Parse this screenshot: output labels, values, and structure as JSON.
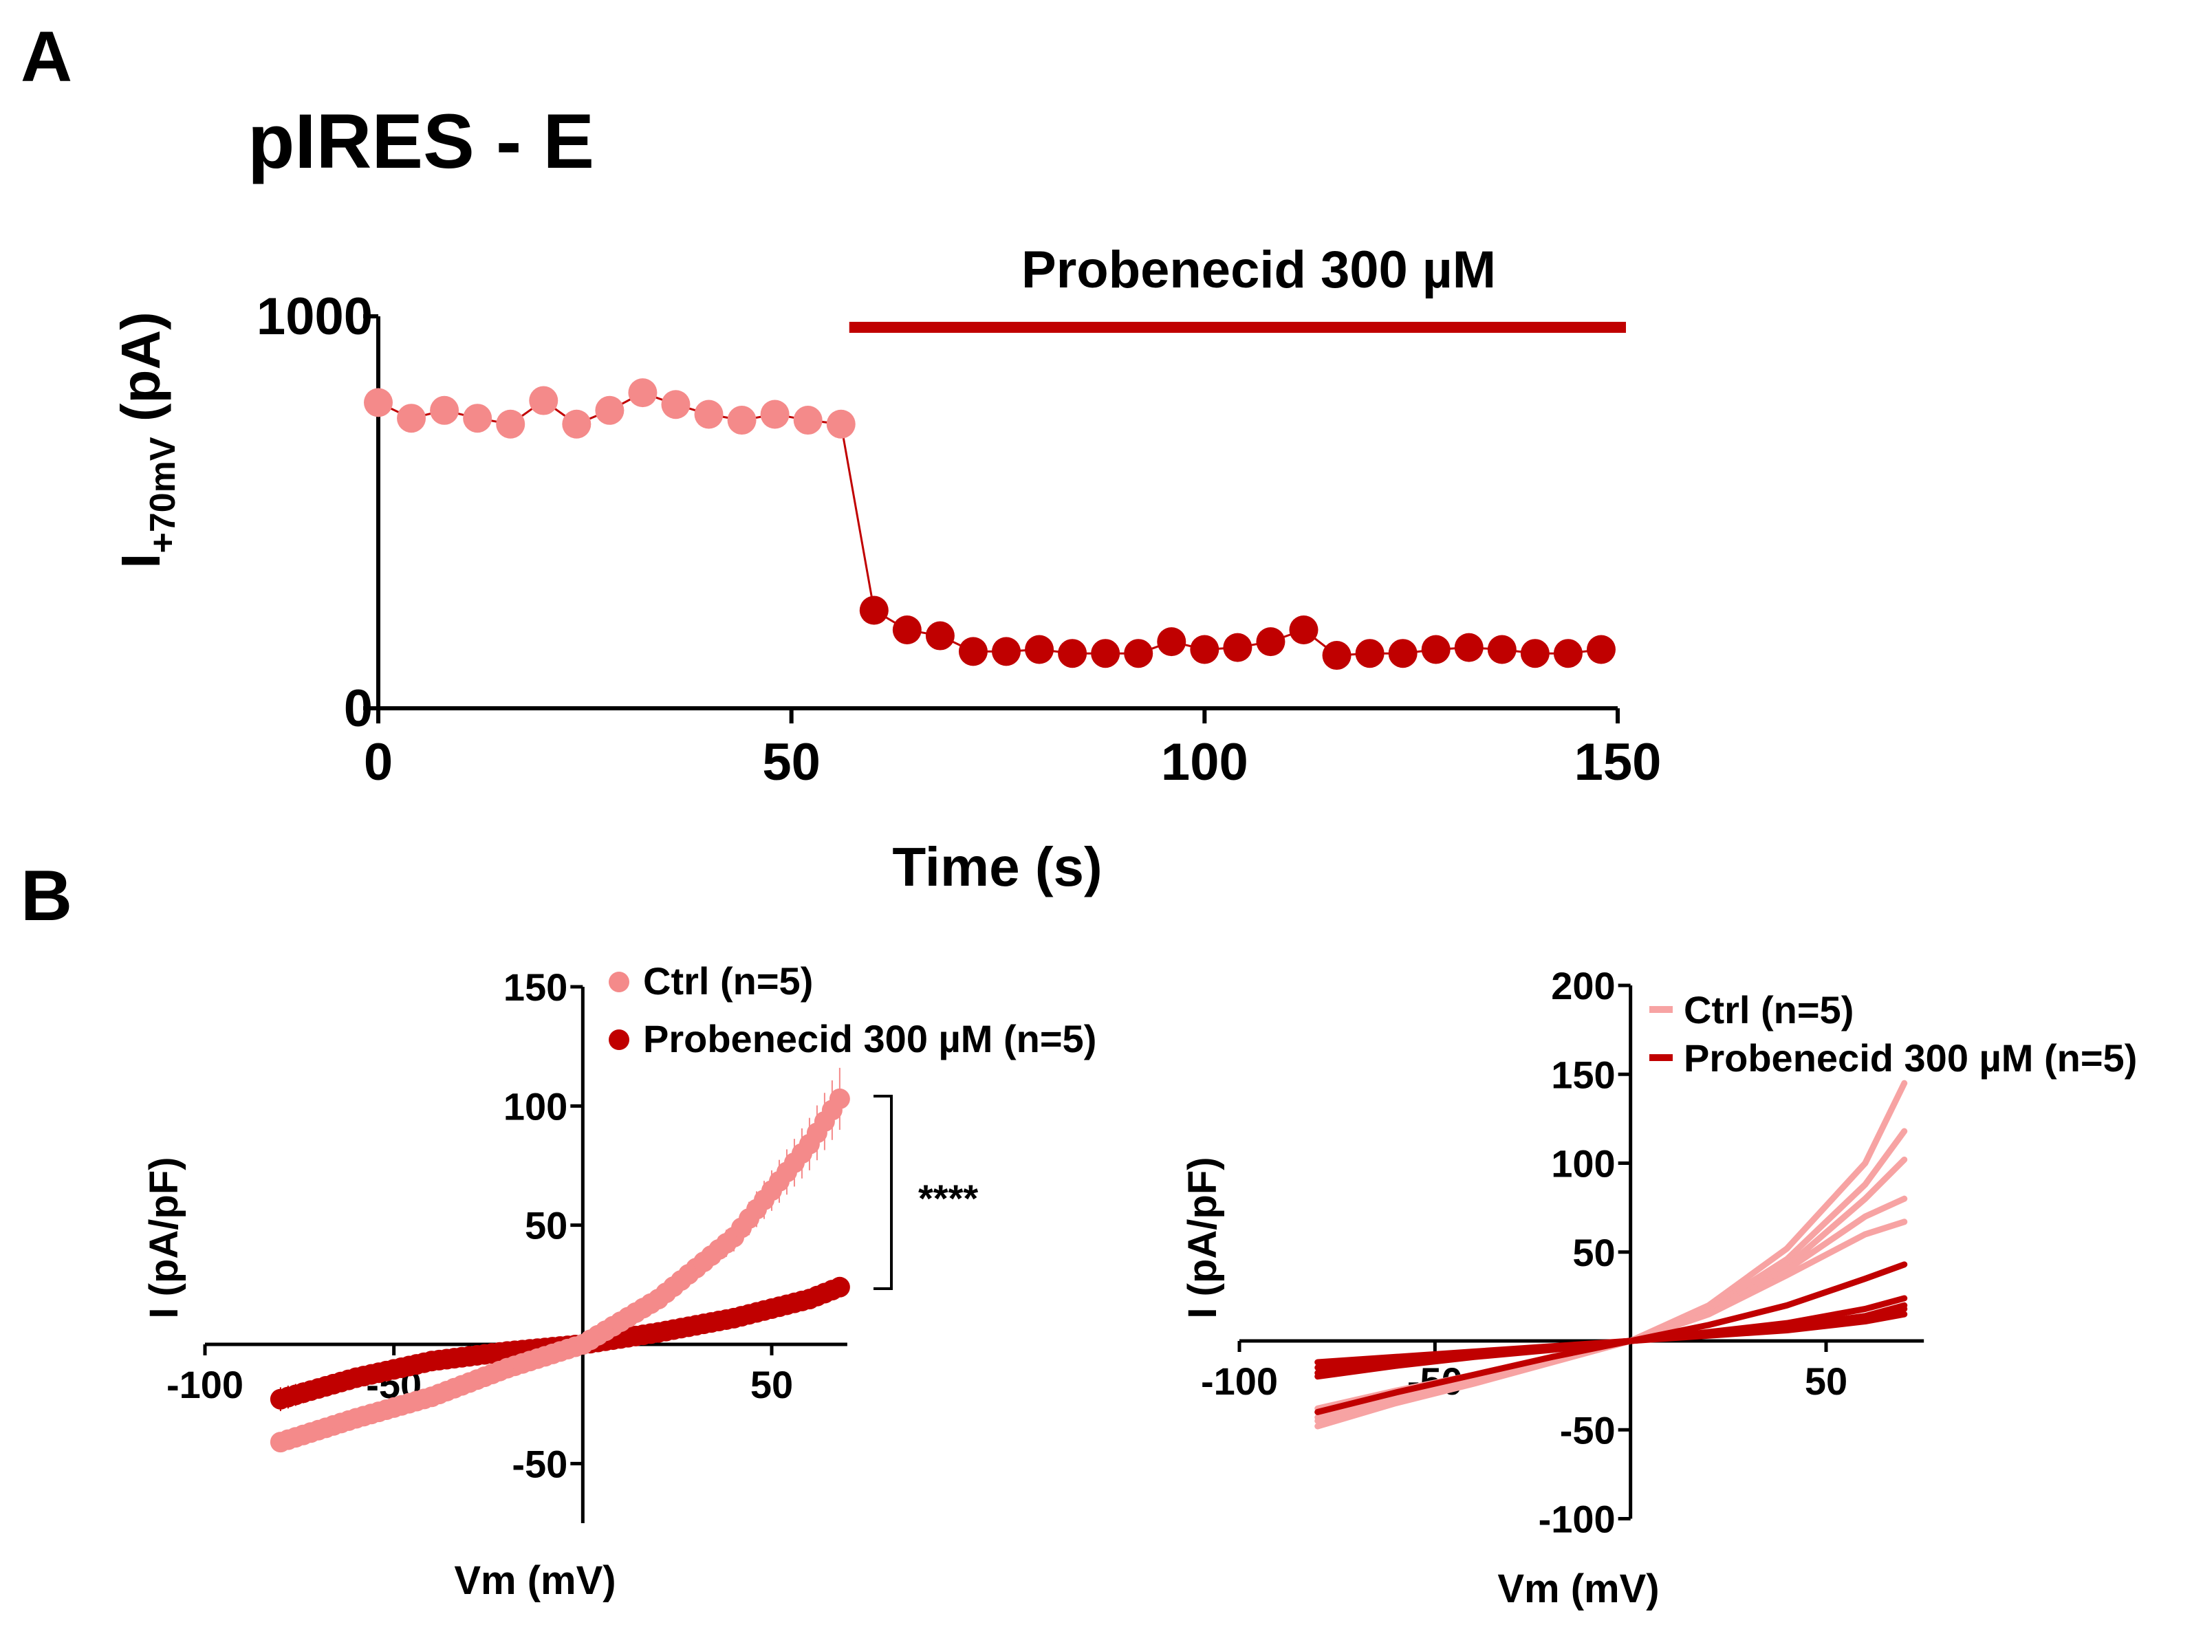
{
  "colors": {
    "ctrl": "#F48A8A",
    "ctrl_trace": "#F7A3A3",
    "drug": "#C00000",
    "axis": "#000000"
  },
  "panel_a": {
    "label": "A",
    "title": "pIRES - E",
    "bar_label": "Probenecid 300 µM",
    "ylabel_main": "I",
    "ylabel_sub": "+70mV",
    "ylabel_unit": " (pA)",
    "xlabel": "Time (s)"
  },
  "panel_b": {
    "label": "B",
    "left": {
      "ylabel": "I (pA/pF)",
      "xlabel": "Vm (mV)",
      "legend": [
        "Ctrl (n=5)",
        "Probenecid 300 µM  (n=5)"
      ],
      "significance": "****"
    },
    "right": {
      "ylabel": "I (pA/pF)",
      "xlabel": "Vm (mV)",
      "legend": [
        "Ctrl (n=5)",
        "Probenecid 300 µM  (n=5)"
      ]
    }
  },
  "chart_data": [
    {
      "id": "A",
      "type": "line",
      "title": "pIRES - E",
      "xlabel": "Time (s)",
      "ylabel": "I+70mV (pA)",
      "xlim": [
        0,
        150
      ],
      "ylim": [
        0,
        1000
      ],
      "xticks": [
        0,
        50,
        100,
        150
      ],
      "yticks": [
        0,
        1000
      ],
      "drug_bar": {
        "label": "Probenecid 300 µM",
        "x": [
          57,
          151
        ]
      },
      "series": [
        {
          "name": "Ctrl",
          "x": [
            0,
            4,
            8,
            12,
            16,
            20,
            24,
            28,
            32,
            36,
            40,
            44,
            48,
            52,
            56
          ],
          "values": [
            780,
            740,
            760,
            740,
            725,
            785,
            725,
            760,
            805,
            775,
            750,
            735,
            750,
            735,
            725
          ]
        },
        {
          "name": "Probenecid 300 µM",
          "x": [
            60,
            64,
            68,
            72,
            76,
            80,
            84,
            88,
            92,
            96,
            100,
            104,
            108,
            112,
            116,
            120,
            124,
            128,
            132,
            136,
            140,
            144,
            148
          ],
          "values": [
            250,
            200,
            185,
            145,
            145,
            150,
            140,
            140,
            140,
            170,
            150,
            155,
            170,
            200,
            135,
            140,
            140,
            150,
            155,
            150,
            140,
            140,
            150
          ]
        }
      ]
    },
    {
      "id": "B-left",
      "type": "scatter",
      "xlabel": "Vm (mV)",
      "ylabel": "I (pA/pF)",
      "xlim": [
        -100,
        70
      ],
      "ylim": [
        -75,
        150
      ],
      "xticks": [
        -100,
        -50,
        50
      ],
      "yticks": [
        -50,
        50,
        100,
        150
      ],
      "legend": [
        "Ctrl (n=5)",
        "Probenecid 300 µM  (n=5)"
      ],
      "annotation": "****",
      "series": [
        {
          "name": "Ctrl (n=5)",
          "x": [
            -80,
            -60,
            -40,
            -20,
            0,
            20,
            40,
            60,
            68
          ],
          "values": [
            -41,
            -31,
            -22,
            -10,
            0,
            19,
            45,
            84,
            103
          ],
          "err": [
            2,
            2,
            1,
            1,
            1,
            3,
            6,
            11,
            13
          ]
        },
        {
          "name": "Probenecid 300 µM  (n=5)",
          "x": [
            -80,
            -60,
            -40,
            -20,
            0,
            20,
            40,
            60,
            68
          ],
          "values": [
            -23,
            -14,
            -7,
            -3,
            0,
            5,
            11,
            19,
            24
          ],
          "err": [
            5,
            3,
            2,
            1,
            1,
            1,
            2,
            3,
            4
          ]
        }
      ]
    },
    {
      "id": "B-right",
      "type": "line",
      "xlabel": "Vm (mV)",
      "ylabel": "I (pA/pF)",
      "xlim": [
        -100,
        75
      ],
      "ylim": [
        -100,
        200
      ],
      "xticks": [
        -100,
        -50,
        50
      ],
      "yticks": [
        -100,
        -50,
        50,
        100,
        150,
        200
      ],
      "legend": [
        "Ctrl (n=5)",
        "Probenecid 300 µM  (n=5)"
      ],
      "series": [
        {
          "name": "Ctrl 1",
          "group": "ctrl",
          "x": [
            -80,
            -60,
            -40,
            -20,
            0,
            20,
            40,
            60,
            70
          ],
          "values": [
            -48,
            -35,
            -24,
            -12,
            0,
            20,
            52,
            100,
            145
          ]
        },
        {
          "name": "Ctrl 2",
          "group": "ctrl",
          "x": [
            -80,
            -60,
            -40,
            -20,
            0,
            20,
            40,
            60,
            70
          ],
          "values": [
            -43,
            -32,
            -21,
            -10,
            0,
            18,
            46,
            88,
            118
          ]
        },
        {
          "name": "Ctrl 3",
          "group": "ctrl",
          "x": [
            -80,
            -60,
            -40,
            -20,
            0,
            20,
            40,
            60,
            70
          ],
          "values": [
            -45,
            -33,
            -22,
            -11,
            0,
            17,
            42,
            80,
            102
          ]
        },
        {
          "name": "Ctrl 4",
          "group": "ctrl",
          "x": [
            -80,
            -60,
            -40,
            -20,
            0,
            20,
            40,
            60,
            70
          ],
          "values": [
            -40,
            -30,
            -20,
            -10,
            0,
            16,
            40,
            70,
            80
          ]
        },
        {
          "name": "Ctrl 5",
          "group": "ctrl",
          "x": [
            -80,
            -60,
            -40,
            -20,
            0,
            20,
            40,
            60,
            70
          ],
          "values": [
            -38,
            -28,
            -19,
            -9,
            0,
            15,
            37,
            60,
            67
          ]
        },
        {
          "name": "Probenecid 1",
          "group": "drug",
          "x": [
            -80,
            -60,
            -40,
            -20,
            0,
            20,
            40,
            60,
            70
          ],
          "values": [
            -40,
            -29,
            -19,
            -9,
            0,
            9,
            20,
            35,
            43
          ]
        },
        {
          "name": "Probenecid 2",
          "group": "drug",
          "x": [
            -80,
            -60,
            -40,
            -20,
            0,
            20,
            40,
            60,
            70
          ],
          "values": [
            -20,
            -14,
            -9,
            -5,
            0,
            5,
            10,
            18,
            24
          ]
        },
        {
          "name": "Probenecid 3",
          "group": "drug",
          "x": [
            -80,
            -60,
            -40,
            -20,
            0,
            20,
            40,
            60,
            70
          ],
          "values": [
            -15,
            -11,
            -7,
            -4,
            0,
            4,
            8,
            14,
            20
          ]
        },
        {
          "name": "Probenecid 4",
          "group": "drug",
          "x": [
            -80,
            -60,
            -40,
            -20,
            0,
            20,
            40,
            60,
            70
          ],
          "values": [
            -18,
            -13,
            -8,
            -4,
            0,
            4,
            8,
            13,
            18
          ]
        },
        {
          "name": "Probenecid 5",
          "group": "drug",
          "x": [
            -80,
            -60,
            -40,
            -20,
            0,
            20,
            40,
            60,
            70
          ],
          "values": [
            -12,
            -9,
            -6,
            -3,
            0,
            3,
            6,
            11,
            15
          ]
        }
      ]
    }
  ]
}
